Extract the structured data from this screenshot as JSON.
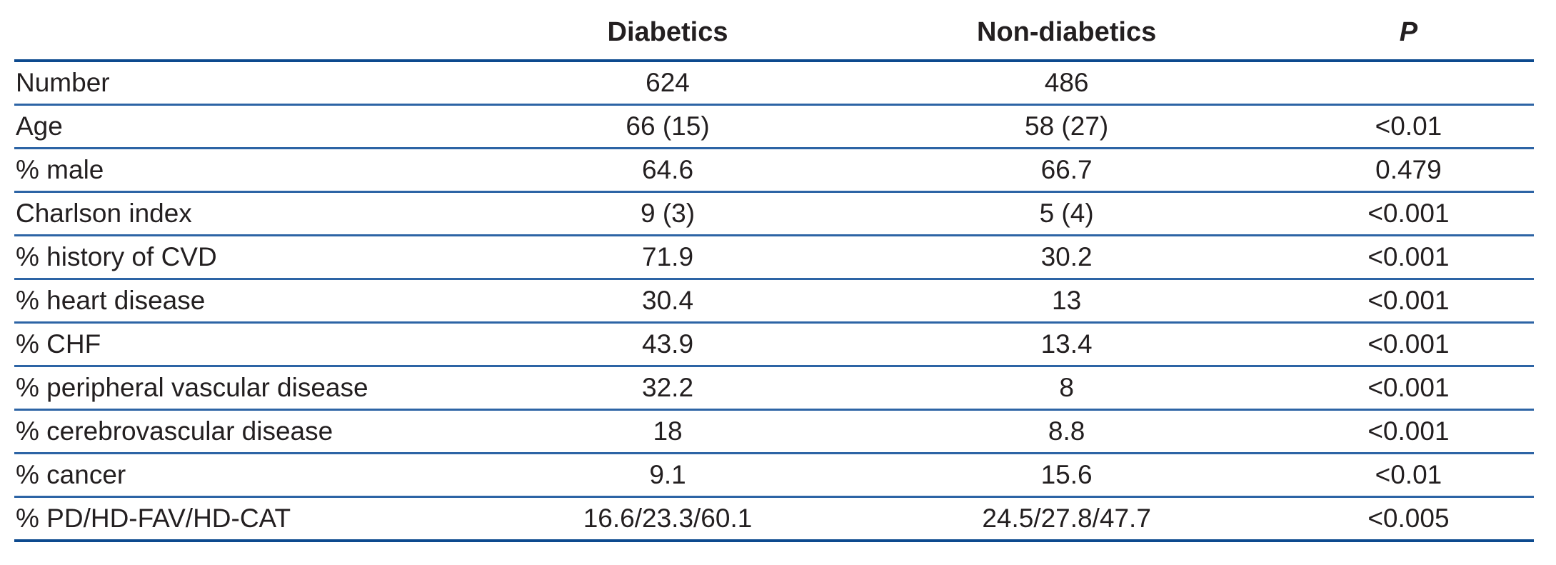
{
  "colors": {
    "rule_dark": "#0d4a8e",
    "rule_light": "#2d64a5",
    "text": "#231f20",
    "background": "#ffffff"
  },
  "table": {
    "headers": {
      "label": "",
      "diabetics": "Diabetics",
      "non_diabetics": "Non-diabetics",
      "p": "P"
    },
    "rows": [
      {
        "label": "Number",
        "diabetics": "624",
        "non_diabetics": "486",
        "p": ""
      },
      {
        "label": "Age",
        "diabetics": "66 (15)",
        "non_diabetics": "58 (27)",
        "p": "<0.01"
      },
      {
        "label": "% male",
        "diabetics": "64.6",
        "non_diabetics": "66.7",
        "p": "0.479"
      },
      {
        "label": "Charlson index",
        "diabetics": "9 (3)",
        "non_diabetics": "5 (4)",
        "p": "<0.001"
      },
      {
        "label": "% history of CVD",
        "diabetics": "71.9",
        "non_diabetics": "30.2",
        "p": "<0.001"
      },
      {
        "label": "% heart disease",
        "diabetics": "30.4",
        "non_diabetics": "13",
        "p": "<0.001"
      },
      {
        "label": "% CHF",
        "diabetics": "43.9",
        "non_diabetics": "13.4",
        "p": "<0.001"
      },
      {
        "label": "% peripheral vascular disease",
        "diabetics": "32.2",
        "non_diabetics": "8",
        "p": "<0.001"
      },
      {
        "label": "% cerebrovascular disease",
        "diabetics": "18",
        "non_diabetics": "8.8",
        "p": "<0.001"
      },
      {
        "label": "% cancer",
        "diabetics": "9.1",
        "non_diabetics": "15.6",
        "p": "<0.01"
      },
      {
        "label": "% PD/HD-FAV/HD-CAT",
        "diabetics": "16.6/23.3/60.1",
        "non_diabetics": "24.5/27.8/47.7",
        "p": "<0.005"
      }
    ]
  }
}
